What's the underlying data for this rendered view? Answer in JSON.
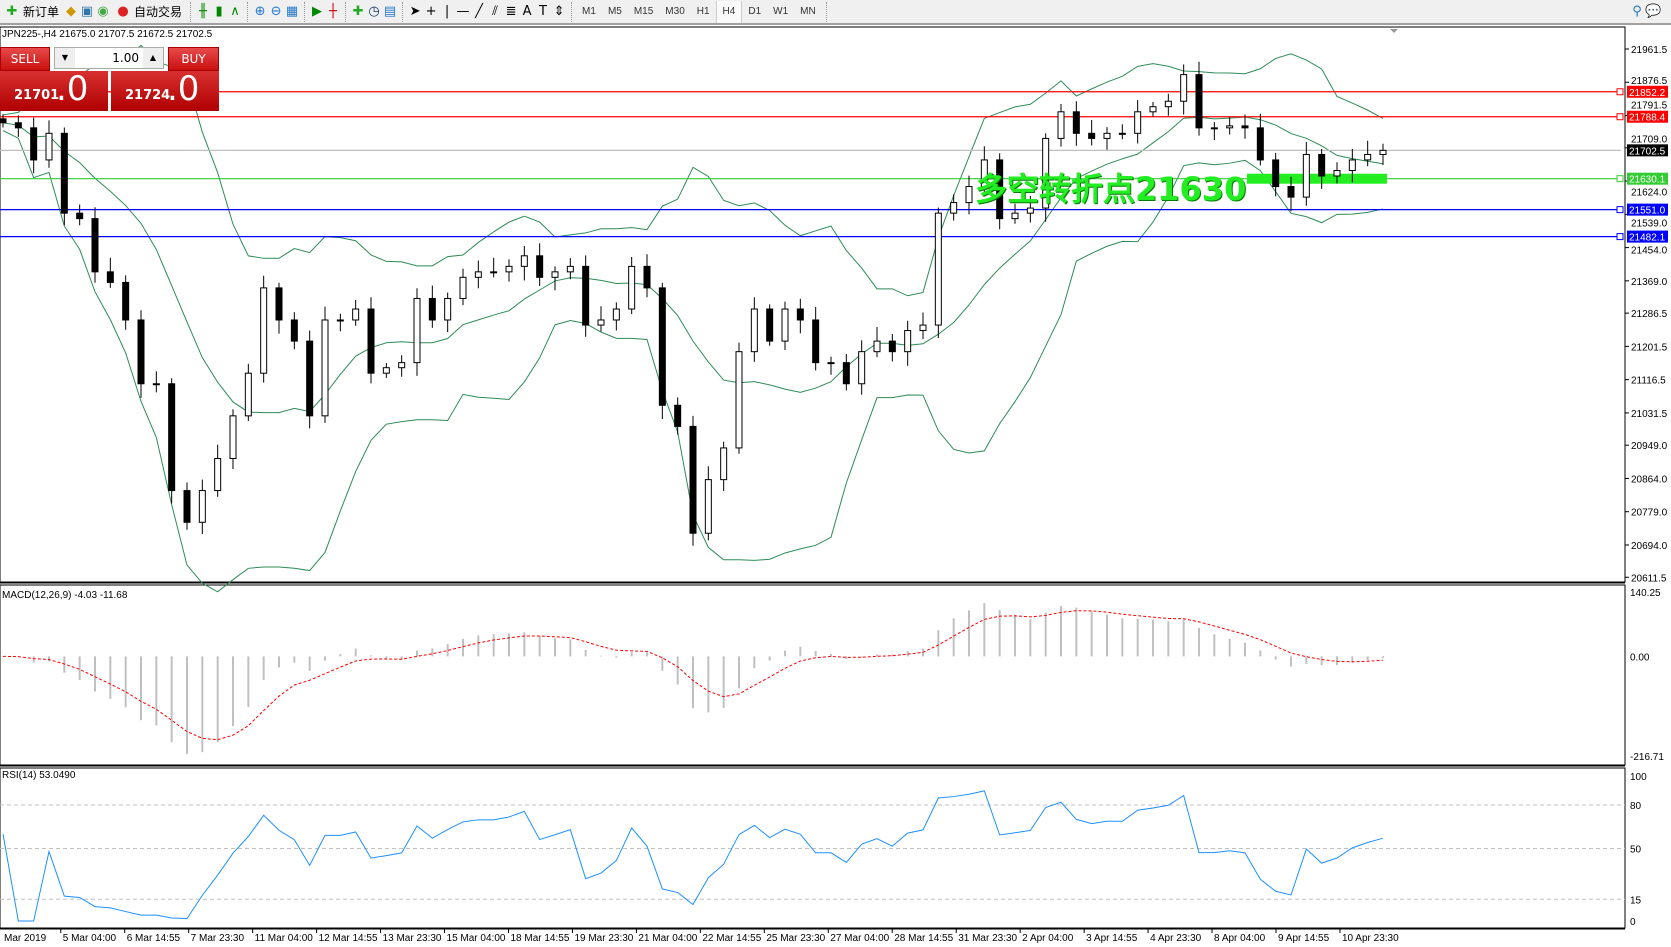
{
  "toolbar": {
    "new_order": "新订单",
    "auto_trading": "自动交易",
    "timeframes": [
      "M1",
      "M5",
      "M15",
      "M30",
      "H1",
      "H4",
      "D1",
      "W1",
      "MN"
    ],
    "active_timeframe": "H4",
    "icons": [
      "new-order-icon",
      "market-watch-icon",
      "navigator-icon",
      "signals-icon",
      "auto-trading-icon",
      "bar-chart-icon",
      "candlestick-icon",
      "line-chart-icon",
      "zoom-in-icon",
      "zoom-out-icon",
      "tile-windows-icon",
      "autoscroll-icon",
      "chart-shift-icon",
      "indicators-icon",
      "periods-icon",
      "templates-icon",
      "cursor-icon",
      "crosshair-icon",
      "vertical-line-icon",
      "horizontal-line-icon",
      "trendline-icon",
      "fibonacci-icon",
      "fibo-fan-icon",
      "text-icon",
      "text-label-icon",
      "arrows-icon",
      "search-icon",
      "chat-icon"
    ]
  },
  "symbol": {
    "title": "JPN225-,H4  21675.0 21707.5 21672.5 21702.5"
  },
  "trade_panel": {
    "sell_label": "SELL",
    "buy_label": "BUY",
    "volume": "1.00",
    "sell_price_main": "21701",
    "sell_price_frac": ".0",
    "buy_price_main": "21724",
    "buy_price_frac": ".0"
  },
  "price_axis": {
    "ticks": [
      "21961.5",
      "21876.5",
      "21791.5",
      "21709.0",
      "21624.0",
      "21539.0",
      "21454.0",
      "21369.0",
      "21286.5",
      "21201.5",
      "21116.5",
      "21031.5",
      "20949.0",
      "20864.0",
      "20779.0",
      "20694.0",
      "20611.5"
    ]
  },
  "levels": [
    {
      "price": 21852.2,
      "label": "21852.2",
      "color": "#ff0000"
    },
    {
      "price": 21788.4,
      "label": "21788.4",
      "color": "#ff0000"
    },
    {
      "price": 21702.5,
      "label": "21702.5",
      "color": "#000000",
      "line": "#c0c0c0"
    },
    {
      "price": 21630.1,
      "label": "21630.1",
      "color": "#33cc33"
    },
    {
      "price": 21551.0,
      "label": "21551.0",
      "color": "#0000ff"
    },
    {
      "price": 21482.1,
      "label": "21482.1",
      "color": "#0000ff"
    }
  ],
  "annotation": {
    "text": "多空转折点21630",
    "color": "#22ee22",
    "price": 21630
  },
  "time_axis": [
    "Mar 2019",
    "5 Mar 04:00",
    "6 Mar 14:55",
    "7 Mar 23:30",
    "11 Mar 04:00",
    "12 Mar 14:55",
    "13 Mar 23:30",
    "15 Mar 04:00",
    "18 Mar 14:55",
    "19 Mar 23:30",
    "21 Mar 04:00",
    "22 Mar 14:55",
    "25 Mar 23:30",
    "27 Mar 04:00",
    "28 Mar 14:55",
    "31 Mar 23:30",
    "2 Apr 04:00",
    "3 Apr 14:55",
    "4 Apr 23:30",
    "8 Apr 04:00",
    "9 Apr 14:55",
    "10 Apr 23:30"
  ],
  "macd": {
    "label": "MACD(12,26,9) -4.03 -11.68",
    "ticks": [
      "140.25",
      "0.00",
      "-216.71"
    ],
    "signal_color": "#ff0000",
    "hist_color": "#c0c0c0"
  },
  "rsi": {
    "label": "RSI(14) 53.0490",
    "ticks": [
      "100",
      "80",
      "50",
      "15",
      "0"
    ],
    "levels": [
      80,
      50,
      15
    ],
    "color": "#1e90ff"
  },
  "chart_data": {
    "type": "candlestick",
    "symbol": "JPN225-",
    "timeframe": "H4",
    "ylim": [
      20611.5,
      21990
    ],
    "close": [
      21773,
      21760,
      21678,
      21746,
      21542,
      21528,
      21392,
      21365,
      21269,
      21106,
      21106,
      20833,
      20752,
      20833,
      20915,
      21024,
      21133,
      21351,
      21269,
      21215,
      21024,
      21269,
      21269,
      21297,
      21133,
      21147,
      21160,
      21324,
      21269,
      21324,
      21378,
      21392,
      21392,
      21406,
      21433,
      21378,
      21392,
      21406,
      21256,
      21269,
      21297,
      21406,
      21351,
      21051,
      20997,
      20724,
      20861,
      20942,
      21188,
      21297,
      21215,
      21297,
      21269,
      21160,
      21160,
      21106,
      21188,
      21215,
      21188,
      21242,
      21256,
      21542,
      21569,
      21610,
      21678,
      21528,
      21542,
      21555,
      21733,
      21801,
      21746,
      21733,
      21746,
      21746,
      21801,
      21814,
      21828,
      21896,
      21760,
      21760,
      21765,
      21760,
      21678,
      21610,
      21583,
      21692,
      21637,
      21651,
      21678,
      21692,
      21702.5
    ],
    "bands_color": "#2e8b57"
  }
}
